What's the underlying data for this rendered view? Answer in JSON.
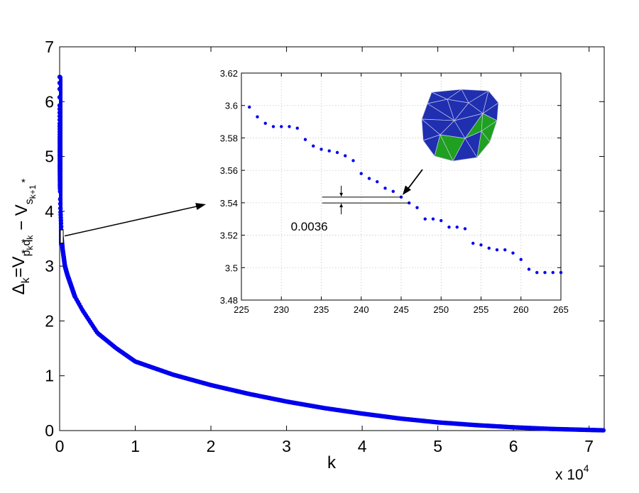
{
  "chart_data": [
    {
      "type": "scatter",
      "marker_color": "#0000ee",
      "xlabel": "k",
      "x_multiplier_label": "x 10",
      "x_multiplier_exp": "4",
      "ylabel": {
        "prefix": "Δ",
        "sub_k": "k",
        "equals_v": "=V",
        "sub_p": "p",
        "sub_k2": "k",
        "sub_q": "q",
        "sub_k3": "k",
        "star1": "*",
        "star2": "*",
        "minus_v": " − V",
        "sub_s": "s",
        "sub_k1": "k+1",
        "star3": "*"
      },
      "xlim": [
        0,
        72000
      ],
      "ylim": [
        0,
        7
      ],
      "xticks": [
        0,
        1,
        2,
        3,
        4,
        5,
        6,
        7
      ],
      "yticks": [
        0,
        1,
        2,
        3,
        4,
        5,
        6,
        7
      ],
      "grid": false,
      "curve_points": [
        [
          1,
          6.45
        ],
        [
          3,
          6.23
        ],
        [
          5,
          5.93
        ],
        [
          7,
          5.8
        ],
        [
          10,
          5.6
        ],
        [
          15,
          5.35
        ],
        [
          20,
          5.15
        ],
        [
          30,
          4.85
        ],
        [
          50,
          4.5
        ],
        [
          80,
          4.22
        ],
        [
          120,
          4.0
        ],
        [
          180,
          3.8
        ],
        [
          245,
          3.54
        ],
        [
          400,
          3.3
        ],
        [
          700,
          3.0
        ],
        [
          1000,
          2.85
        ],
        [
          2000,
          2.45
        ],
        [
          3000,
          2.2
        ],
        [
          5000,
          1.78
        ],
        [
          7500,
          1.5
        ],
        [
          10000,
          1.26
        ],
        [
          15000,
          1.02
        ],
        [
          20000,
          0.83
        ],
        [
          25000,
          0.67
        ],
        [
          30000,
          0.53
        ],
        [
          35000,
          0.41
        ],
        [
          40000,
          0.31
        ],
        [
          45000,
          0.22
        ],
        [
          50000,
          0.15
        ],
        [
          55000,
          0.1
        ],
        [
          60000,
          0.06
        ],
        [
          65000,
          0.03
        ],
        [
          70000,
          0.012
        ],
        [
          72000,
          0.005
        ]
      ],
      "zoom_window": {
        "x": [
          190,
          300
        ],
        "y": [
          3.42,
          3.66
        ]
      }
    },
    {
      "type": "scatter",
      "marker_color": "#0000ee",
      "xlim": [
        225,
        265
      ],
      "ylim": [
        3.48,
        3.62
      ],
      "xticks": [
        225,
        230,
        235,
        240,
        245,
        250,
        255,
        260,
        265
      ],
      "yticks": [
        3.48,
        3.5,
        3.52,
        3.54,
        3.56,
        3.58,
        3.6,
        3.62
      ],
      "grid": true,
      "x": [
        226,
        227,
        228,
        229,
        230,
        231,
        232,
        233,
        234,
        235,
        236,
        237,
        238,
        239,
        240,
        241,
        242,
        243,
        244,
        245,
        246,
        247,
        248,
        249,
        250,
        251,
        252,
        253,
        254,
        255,
        256,
        257,
        258,
        259,
        260,
        261,
        262,
        263,
        264,
        265
      ],
      "y": [
        3.599,
        3.593,
        3.589,
        3.587,
        3.587,
        3.587,
        3.586,
        3.579,
        3.575,
        3.573,
        3.572,
        3.571,
        3.569,
        3.566,
        3.558,
        3.555,
        3.553,
        3.549,
        3.547,
        3.5435,
        3.5399,
        3.537,
        3.53,
        3.53,
        3.529,
        3.525,
        3.525,
        3.524,
        3.515,
        3.514,
        3.512,
        3.511,
        3.511,
        3.509,
        3.505,
        3.499,
        3.497,
        3.497,
        3.497,
        3.497
      ],
      "annotation": {
        "label": "0.0036",
        "y_upper": 3.5435,
        "y_lower": 3.5399,
        "x_from": 236,
        "x_to": 246
      },
      "polyhedron_colors": {
        "blue": "#1f2fb0",
        "green": "#1fa020",
        "edge": "#c8c8e8"
      }
    }
  ]
}
